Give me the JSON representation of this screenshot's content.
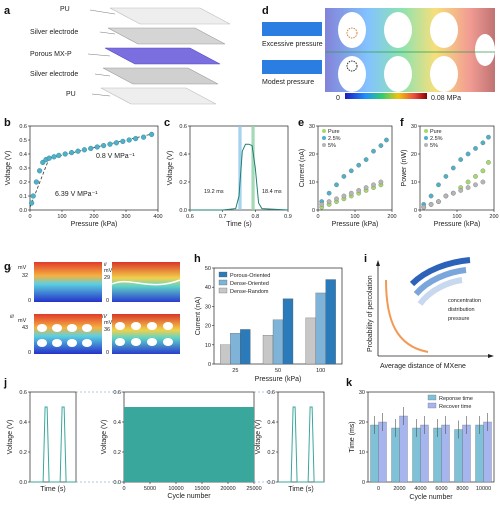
{
  "panels": {
    "a": {
      "letter": "a",
      "layers": [
        "PU",
        "Silver electrode",
        "Porous MX-P",
        "Silver electrode",
        "PU"
      ]
    },
    "b": {
      "letter": "b",
      "xlabel": "Pressure (kPa)",
      "ylabel": "Voltage (V)",
      "sens_high": "6.39 V MPa⁻¹",
      "sens_low": "0.8 V MPa⁻¹"
    },
    "c": {
      "letter": "c",
      "xlabel": "Time (s)",
      "ylabel": "Voltage (V)",
      "rise": "19.2 ms",
      "fall": "18.4 ms"
    },
    "d": {
      "letter": "d",
      "excessive": "Excessive pressure",
      "modest": "Modest pressure",
      "cbar_min": "0",
      "cbar_max": "0.08 MPa"
    },
    "e": {
      "letter": "e",
      "xlabel": "Pressure (kPa)",
      "ylabel": "Current (nA)",
      "legend": [
        "Pure",
        "2.5%",
        "5%"
      ]
    },
    "f": {
      "letter": "f",
      "xlabel": "Pressure (kPa)",
      "ylabel": "Power (nW)",
      "legend": [
        "Pure",
        "2.5%",
        "5%"
      ]
    },
    "g": {
      "letter": "g",
      "subs": [
        {
          "roman": "i",
          "unit": "mV",
          "max": "32"
        },
        {
          "roman": "ii",
          "unit": "mV",
          "max": "29"
        },
        {
          "roman": "iii",
          "unit": "mV",
          "max": "43"
        },
        {
          "roman": "iV",
          "unit": "mV",
          "max": "36"
        }
      ],
      "zero": "0"
    },
    "h": {
      "letter": "h",
      "xlabel": "Pressure (kPa)",
      "ylabel": "Current (nA)"
    },
    "i": {
      "letter": "i",
      "xlabel": "Average distance of MXene",
      "ylabel": "Probability of percolation",
      "arrows": [
        "concentration",
        "distribution",
        "pressure"
      ]
    },
    "j": {
      "letter": "j",
      "left_xlabel": "Time (s)",
      "mid_xlabel": "Cycle number",
      "right_xlabel": "Time (s)",
      "ylabel": "Voltage (V)"
    },
    "k": {
      "letter": "k",
      "xlabel": "Cycle number",
      "ylabel": "Time (ms)"
    }
  },
  "chart_data": [
    {
      "id": "b",
      "type": "scatter",
      "title": "",
      "xlabel": "Pressure (kPa)",
      "ylabel": "Voltage (V)",
      "xlim": [
        0,
        400
      ],
      "ylim": [
        0.0,
        0.6
      ],
      "xticks": [
        0,
        100,
        200,
        300,
        400
      ],
      "yticks": [
        0.0,
        0.1,
        0.2,
        0.3,
        0.4,
        0.5,
        0.6
      ],
      "x": [
        5,
        10,
        20,
        30,
        40,
        50,
        60,
        75,
        90,
        110,
        130,
        150,
        170,
        190,
        210,
        230,
        250,
        270,
        290,
        310,
        330,
        355,
        380
      ],
      "y": [
        0.05,
        0.1,
        0.2,
        0.28,
        0.34,
        0.36,
        0.37,
        0.38,
        0.39,
        0.4,
        0.41,
        0.42,
        0.43,
        0.44,
        0.45,
        0.46,
        0.47,
        0.48,
        0.49,
        0.5,
        0.51,
        0.52,
        0.54
      ]
    },
    {
      "id": "c",
      "type": "line",
      "title": "",
      "xlabel": "Time (s)",
      "ylabel": "Voltage (V)",
      "xlim": [
        0.6,
        0.9
      ],
      "ylim": [
        0.0,
        0.6
      ],
      "xticks": [
        0.6,
        0.7,
        0.8,
        0.9
      ],
      "yticks": [
        0.0,
        0.2,
        0.4,
        0.6
      ],
      "x": [
        0.6,
        0.7,
        0.74,
        0.75,
        0.76,
        0.77,
        0.78,
        0.79,
        0.8,
        0.81,
        0.82,
        0.9
      ],
      "y": [
        0.0,
        0.0,
        0.01,
        0.1,
        0.42,
        0.47,
        0.47,
        0.46,
        0.3,
        0.05,
        0.01,
        0.0
      ]
    },
    {
      "id": "e",
      "type": "scatter",
      "title": "",
      "xlabel": "Pressure (kPa)",
      "ylabel": "Current (nA)",
      "xlim": [
        0,
        200
      ],
      "ylim": [
        0,
        30
      ],
      "xticks": [
        0,
        100,
        200
      ],
      "yticks": [
        0,
        10,
        20,
        30
      ],
      "series": [
        {
          "name": "Pure",
          "x": [
            10,
            30,
            50,
            70,
            90,
            110,
            130,
            150,
            170
          ],
          "y": [
            1,
            2,
            3,
            4,
            5,
            6,
            7,
            8,
            9
          ]
        },
        {
          "name": "2.5%",
          "x": [
            10,
            30,
            50,
            70,
            90,
            110,
            130,
            150,
            170,
            185
          ],
          "y": [
            3,
            6,
            9,
            12,
            14,
            16,
            18,
            21,
            23,
            25
          ]
        },
        {
          "name": "5%",
          "x": [
            10,
            30,
            50,
            70,
            90,
            110,
            130,
            150,
            170
          ],
          "y": [
            2,
            3,
            4,
            5,
            6,
            7,
            8,
            9,
            10
          ]
        }
      ]
    },
    {
      "id": "f",
      "type": "scatter",
      "title": "",
      "xlabel": "Pressure (kPa)",
      "ylabel": "Power (nW)",
      "xlim": [
        0,
        200
      ],
      "ylim": [
        0,
        30
      ],
      "xticks": [
        0,
        100,
        200
      ],
      "yticks": [
        0,
        10,
        20,
        30
      ],
      "series": [
        {
          "name": "Pure",
          "x": [
            10,
            30,
            50,
            70,
            90,
            110,
            130,
            150,
            170,
            185
          ],
          "y": [
            1,
            2,
            3,
            5,
            6,
            8,
            10,
            12,
            14,
            17
          ]
        },
        {
          "name": "2.5%",
          "x": [
            10,
            30,
            50,
            70,
            90,
            110,
            130,
            150,
            170,
            185
          ],
          "y": [
            2,
            5,
            9,
            12,
            15,
            18,
            20,
            22,
            24,
            26
          ]
        },
        {
          "name": "5%",
          "x": [
            10,
            30,
            50,
            70,
            90,
            110,
            130,
            150,
            170
          ],
          "y": [
            1,
            2,
            3,
            5,
            6,
            7,
            8,
            9,
            10
          ]
        }
      ]
    },
    {
      "id": "h",
      "type": "bar",
      "title": "",
      "xlabel": "Pressure (kPa)",
      "ylabel": "Current (nA)",
      "categories": [
        "25",
        "50",
        "100"
      ],
      "ylim": [
        0,
        50
      ],
      "yticks": [
        0,
        10,
        20,
        30,
        40,
        50
      ],
      "legend_position": "top-left",
      "series": [
        {
          "name": "Porous-Oriented",
          "values": [
            18,
            34,
            44
          ]
        },
        {
          "name": "Dense-Oriented",
          "values": [
            16,
            23,
            37
          ]
        },
        {
          "name": "Dense-Random",
          "values": [
            10,
            15,
            24
          ]
        }
      ]
    },
    {
      "id": "j",
      "type": "line",
      "title": "",
      "xlabel": "Cycle number",
      "ylabel": "Voltage (V)",
      "xlim": [
        0,
        25000
      ],
      "ylim": [
        0.0,
        0.6
      ],
      "xticks": [
        0,
        5000,
        10000,
        15000,
        20000,
        25000
      ],
      "yticks": [
        0.0,
        0.2,
        0.4,
        0.6
      ],
      "envelope_max": 0.5,
      "envelope_min": 0.0
    },
    {
      "id": "k",
      "type": "bar",
      "title": "",
      "xlabel": "Cycle number",
      "ylabel": "Time (ms)",
      "categories": [
        "0",
        "2000",
        "4000",
        "6000",
        "8000",
        "10000"
      ],
      "ylim": [
        0,
        30
      ],
      "yticks": [
        0,
        10,
        20,
        30
      ],
      "legend_position": "top",
      "series": [
        {
          "name": "Reponse time",
          "values": [
            19,
            18,
            18,
            18,
            17.5,
            19
          ]
        },
        {
          "name": "Recover time",
          "values": [
            20,
            22,
            19,
            19,
            19,
            20
          ]
        }
      ]
    }
  ],
  "colors": {
    "teal": "#4fb0c6",
    "green": "#a6d96a",
    "grey": "#b5b5b5",
    "bar1": "#2b7bba",
    "bar2": "#7fb3d8",
    "bar3": "#c7c7c7",
    "cyc": "#3aa79c",
    "resp": "#7fc1d6",
    "rec": "#a6b5ee"
  }
}
